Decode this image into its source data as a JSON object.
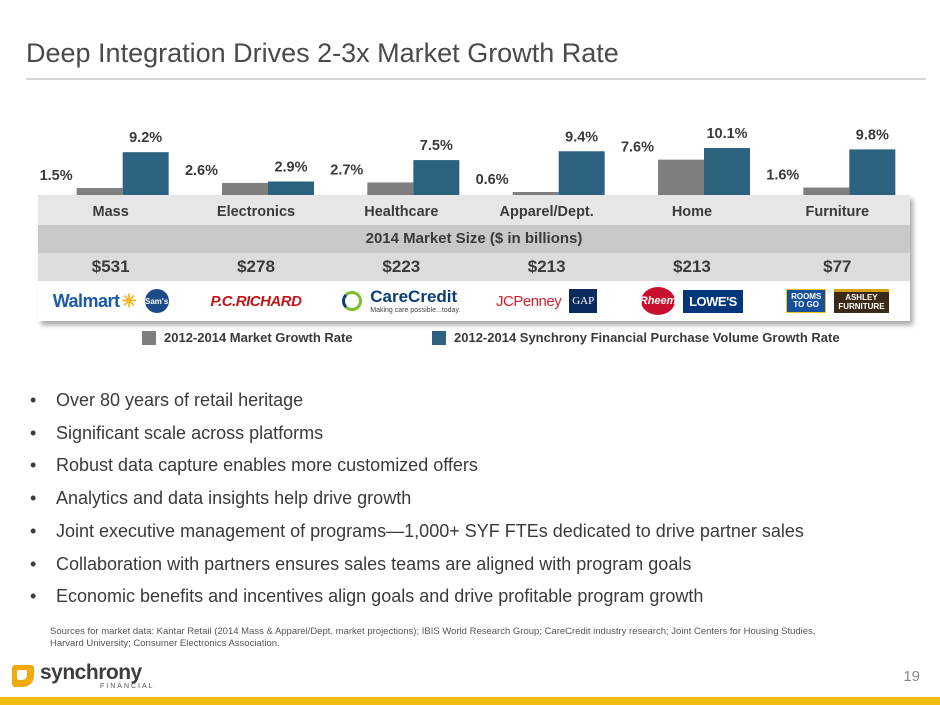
{
  "title": "Deep Integration Drives 2-3x Market Growth Rate",
  "chart_data": {
    "type": "bar",
    "title": "",
    "categories": [
      "Mass",
      "Electronics",
      "Healthcare",
      "Apparel/Dept.",
      "Home",
      "Furniture"
    ],
    "series": [
      {
        "name": "2012-2014 Market Growth Rate",
        "values": [
          1.5,
          2.6,
          2.7,
          0.6,
          7.6,
          1.6
        ],
        "labels": [
          "1.5%",
          "2.6%",
          "2.7%",
          "0.6%",
          "7.6%",
          "1.6%"
        ],
        "color": "#7f7f7f"
      },
      {
        "name": "2012-2014 Synchrony Financial Purchase Volume Growth Rate",
        "values": [
          9.2,
          2.9,
          7.5,
          9.4,
          10.1,
          9.8
        ],
        "labels": [
          "9.2%",
          "2.9%",
          "7.5%",
          "9.4%",
          "10.1%",
          "9.8%"
        ],
        "color": "#2c6280"
      }
    ],
    "xlabel": "",
    "ylabel": "",
    "ylim": [
      0,
      10.1
    ]
  },
  "market_size": {
    "header": "2014 Market Size ($ in billions)",
    "values": [
      "$531",
      "$278",
      "$223",
      "$213",
      "$213",
      "$77"
    ]
  },
  "logos": {
    "walmart": "Walmart",
    "sams": "Sam's",
    "pcrichard": "P.C.RICHARD",
    "carecredit": "CareCredit",
    "carecredit_tagline": "Making care possible...today.",
    "jcpenney": "JCPenney",
    "gap": "GAP",
    "rheem": "Rheem",
    "lowes": "LOWE'S",
    "rtg_line1": "ROOMS",
    "rtg_line2": "TO GO",
    "ashley_line1": "ASHLEY",
    "ashley_line2": "FURNITURE"
  },
  "legend": {
    "market": "2012-2014 Market Growth Rate",
    "synchrony": "2012-2014 Synchrony Financial Purchase Volume Growth Rate"
  },
  "bullets": [
    "Over 80 years of retail heritage",
    "Significant scale across platforms",
    "Robust data capture enables more customized offers",
    "Analytics and data insights help drive growth",
    "Joint executive management of programs—1,000+ SYF FTEs dedicated to drive partner sales",
    "Collaboration with partners ensures sales teams are aligned with program goals",
    "Economic benefits and incentives align goals and drive profitable program growth"
  ],
  "sources": "Sources for market data: Kantar Retail (2014 Mass & Apparel/Dept. market projections); IBIS World Research Group; CareCredit industry research; Joint Centers for Housing Studies, Harvard University; Consumer Electronics Association.",
  "page_number": "19",
  "brand": {
    "name": "synchrony",
    "sub": "FINANCIAL"
  },
  "colors": {
    "market_bar": "#7f7f7f",
    "synchrony_bar": "#2c6280",
    "footer": "#f4bc11"
  }
}
